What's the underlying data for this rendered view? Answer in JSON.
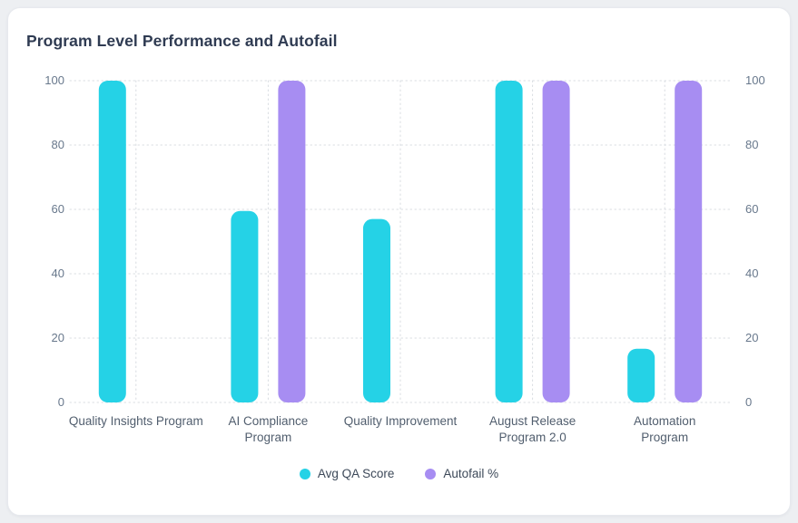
{
  "title": "Program Level Performance and Autofail",
  "chart_data": {
    "type": "bar",
    "title": "Program Level Performance and Autofail",
    "categories": [
      "Quality Insights Program",
      "AI Compliance Program",
      "Quality Improvement",
      "August Release Program 2.0",
      "Automation Program"
    ],
    "category_label_lines": [
      [
        "Quality Insights Program"
      ],
      [
        "AI Compliance",
        "Program"
      ],
      [
        "Quality Improvement"
      ],
      [
        "August Release",
        "Program 2.0"
      ],
      [
        "Automation",
        "Program"
      ]
    ],
    "series": [
      {
        "name": "Avg QA Score",
        "color": "#25d2e6",
        "values": [
          100,
          59.5,
          57,
          100,
          16.7
        ]
      },
      {
        "name": "Autofail %",
        "color": "#a78df2",
        "values": [
          0,
          100,
          0,
          100,
          100
        ]
      }
    ],
    "y_ticks": [
      0,
      20,
      40,
      60,
      80,
      100
    ],
    "ylim": [
      0,
      100
    ],
    "xlabel": "",
    "ylabel": "",
    "dual_y_axis": true,
    "grid": "dotted",
    "legend_position": "bottom"
  },
  "colors": {
    "page_background": "#edeff2",
    "card_background": "#ffffff",
    "title_text": "#2f3b52",
    "axis_text": "#68788c",
    "category_text": "#515e6e",
    "gridline": "#d8dce1",
    "series_qa": "#25d2e6",
    "series_autofail": "#a78df2"
  }
}
